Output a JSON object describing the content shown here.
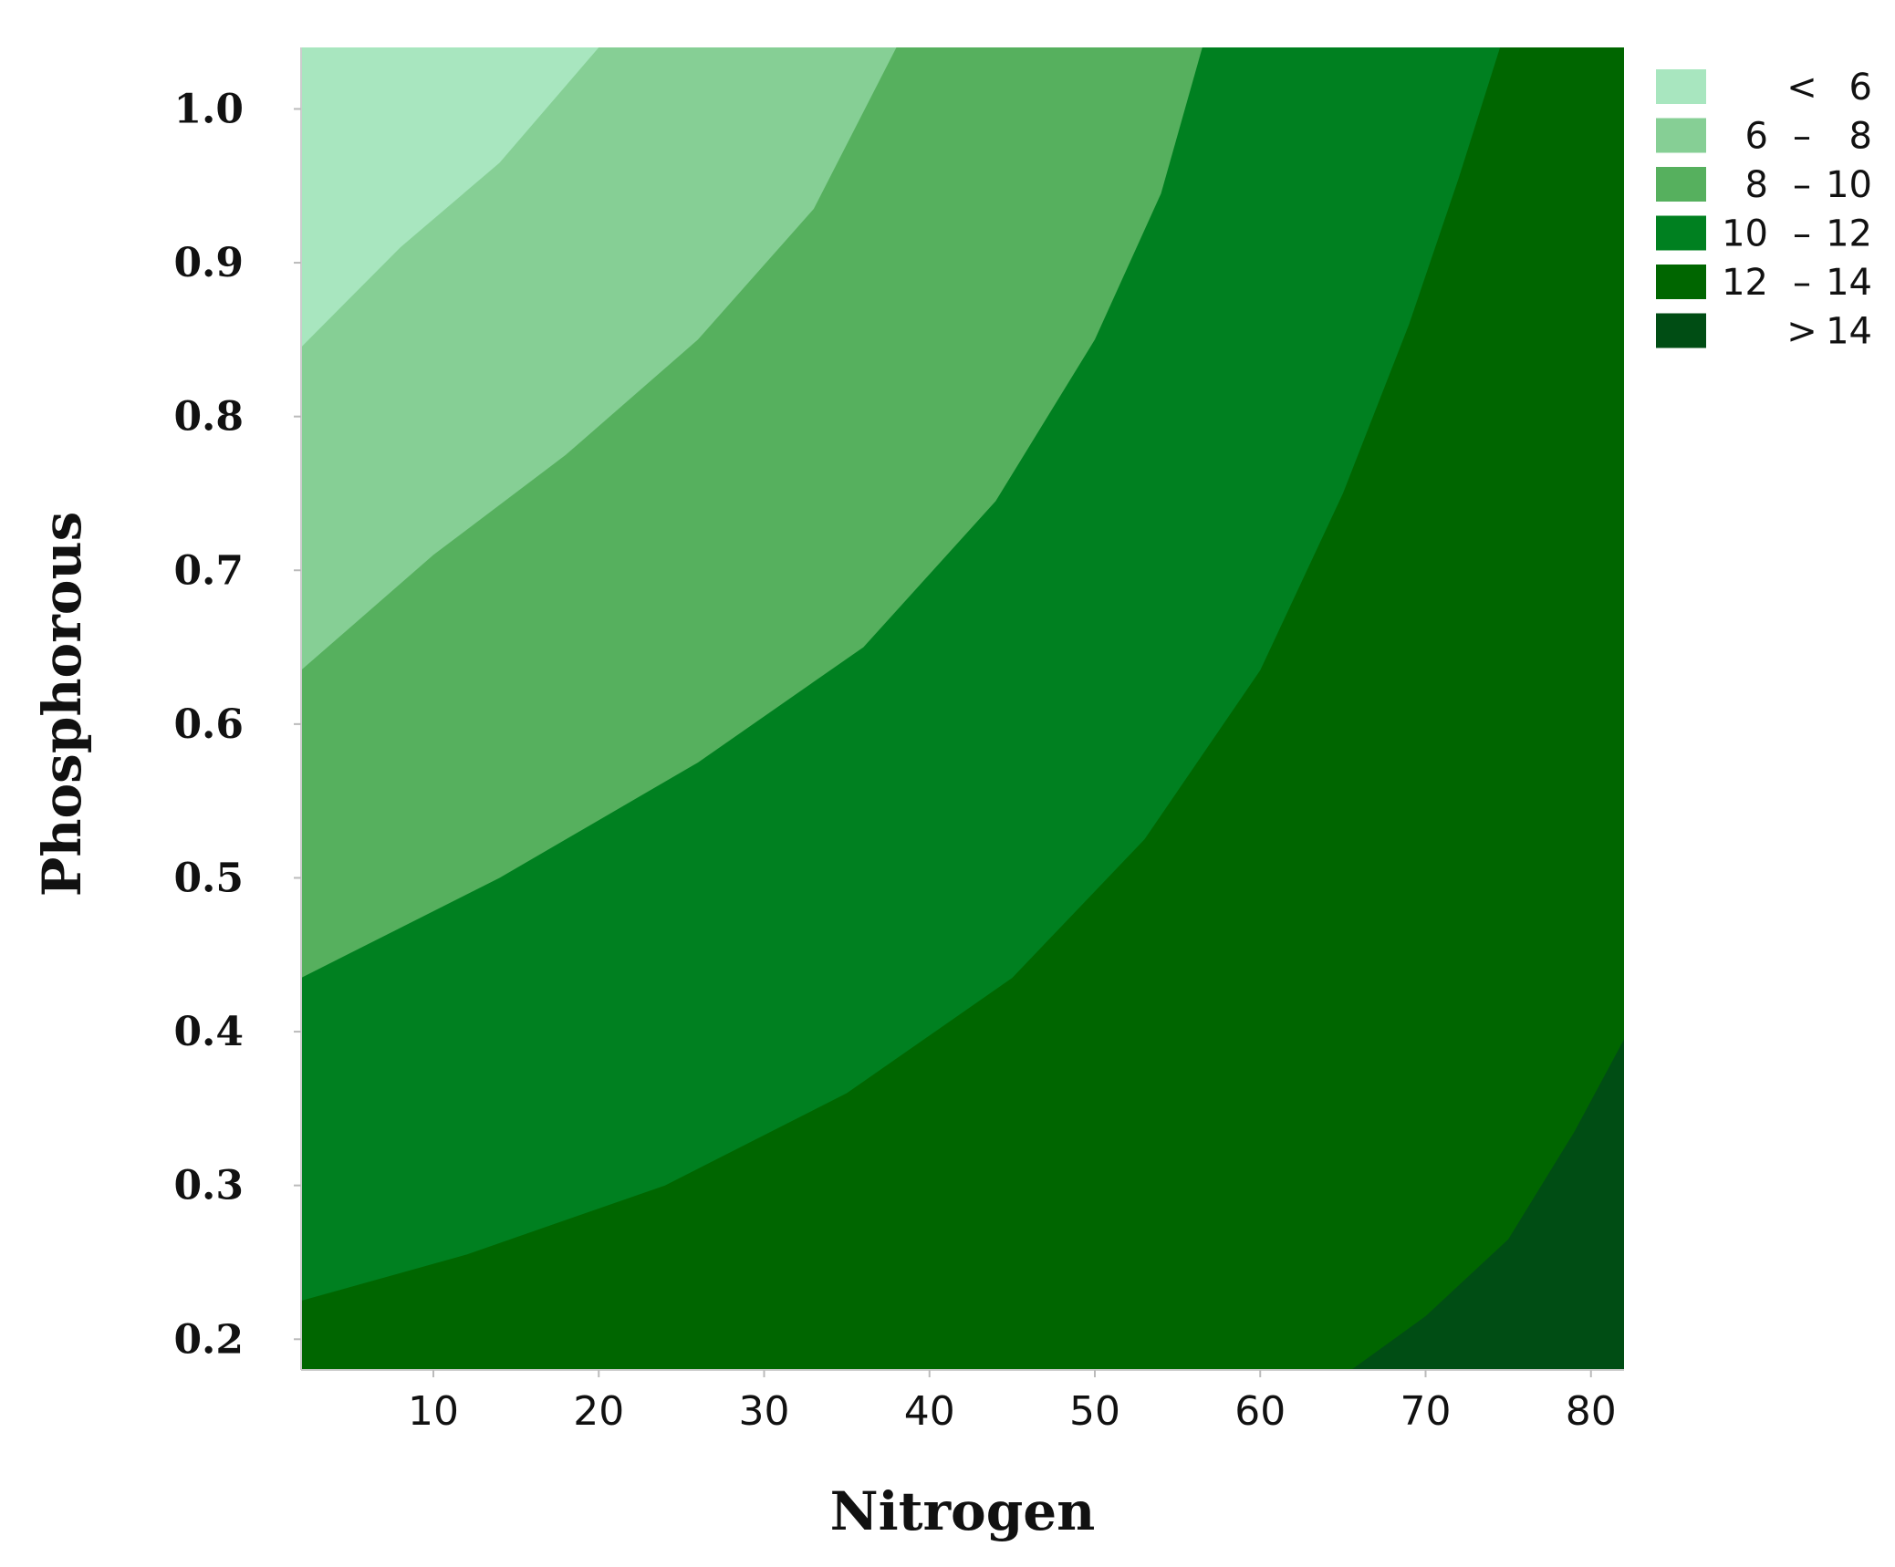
{
  "chart_data": {
    "type": "contour",
    "title": "",
    "xlabel": "Nitrogen",
    "ylabel": "Phosphorous",
    "xlim": [
      2,
      82
    ],
    "ylim": [
      0.18,
      1.04
    ],
    "xticks": [
      10,
      20,
      30,
      40,
      50,
      60,
      70,
      80
    ],
    "yticks": [
      0.2,
      0.3,
      0.4,
      0.5,
      0.6,
      0.7,
      0.8,
      0.9,
      1.0
    ],
    "xtick_labels": [
      "10",
      "20",
      "30",
      "40",
      "50",
      "60",
      "70",
      "80"
    ],
    "ytick_labels": [
      "0.2",
      "0.3",
      "0.4",
      "0.5",
      "0.6",
      "0.7",
      "0.8",
      "0.9",
      "1.0"
    ],
    "legend": [
      {
        "op": "<",
        "lo": "",
        "hi": "6",
        "color": "#a8e6bf"
      },
      {
        "op": "",
        "lo": "6",
        "hi": "8",
        "color": "#86cf95"
      },
      {
        "op": "",
        "lo": "8",
        "hi": "10",
        "color": "#56b05e"
      },
      {
        "op": "",
        "lo": "10",
        "hi": "12",
        "color": "#008020"
      },
      {
        "op": "",
        "lo": "12",
        "hi": "14",
        "color": "#006600"
      },
      {
        "op": ">",
        "lo": "",
        "hi": "14",
        "color": "#004d14"
      }
    ],
    "contour_lines": [
      {
        "level": 6,
        "points": [
          [
            2,
            0.845
          ],
          [
            8,
            0.91
          ],
          [
            14,
            0.965
          ],
          [
            20,
            1.04
          ]
        ]
      },
      {
        "level": 8,
        "points": [
          [
            2,
            0.635
          ],
          [
            10,
            0.71
          ],
          [
            18,
            0.775
          ],
          [
            26,
            0.85
          ],
          [
            33,
            0.935
          ],
          [
            38,
            1.04
          ]
        ]
      },
      {
        "level": 10,
        "points": [
          [
            2,
            0.435
          ],
          [
            14,
            0.5
          ],
          [
            26,
            0.575
          ],
          [
            36,
            0.65
          ],
          [
            44,
            0.745
          ],
          [
            50,
            0.85
          ],
          [
            54,
            0.945
          ],
          [
            56.5,
            1.04
          ]
        ]
      },
      {
        "level": 12,
        "points": [
          [
            2,
            0.225
          ],
          [
            12,
            0.255
          ],
          [
            24,
            0.3
          ],
          [
            35,
            0.36
          ],
          [
            45,
            0.435
          ],
          [
            53,
            0.525
          ],
          [
            60,
            0.635
          ],
          [
            65,
            0.75
          ],
          [
            69,
            0.86
          ],
          [
            72,
            0.955
          ],
          [
            74.5,
            1.04
          ]
        ]
      },
      {
        "level": 14,
        "points": [
          [
            65.5,
            0.18
          ],
          [
            70,
            0.215
          ],
          [
            75,
            0.265
          ],
          [
            79,
            0.335
          ],
          [
            82,
            0.395
          ]
        ]
      }
    ]
  }
}
